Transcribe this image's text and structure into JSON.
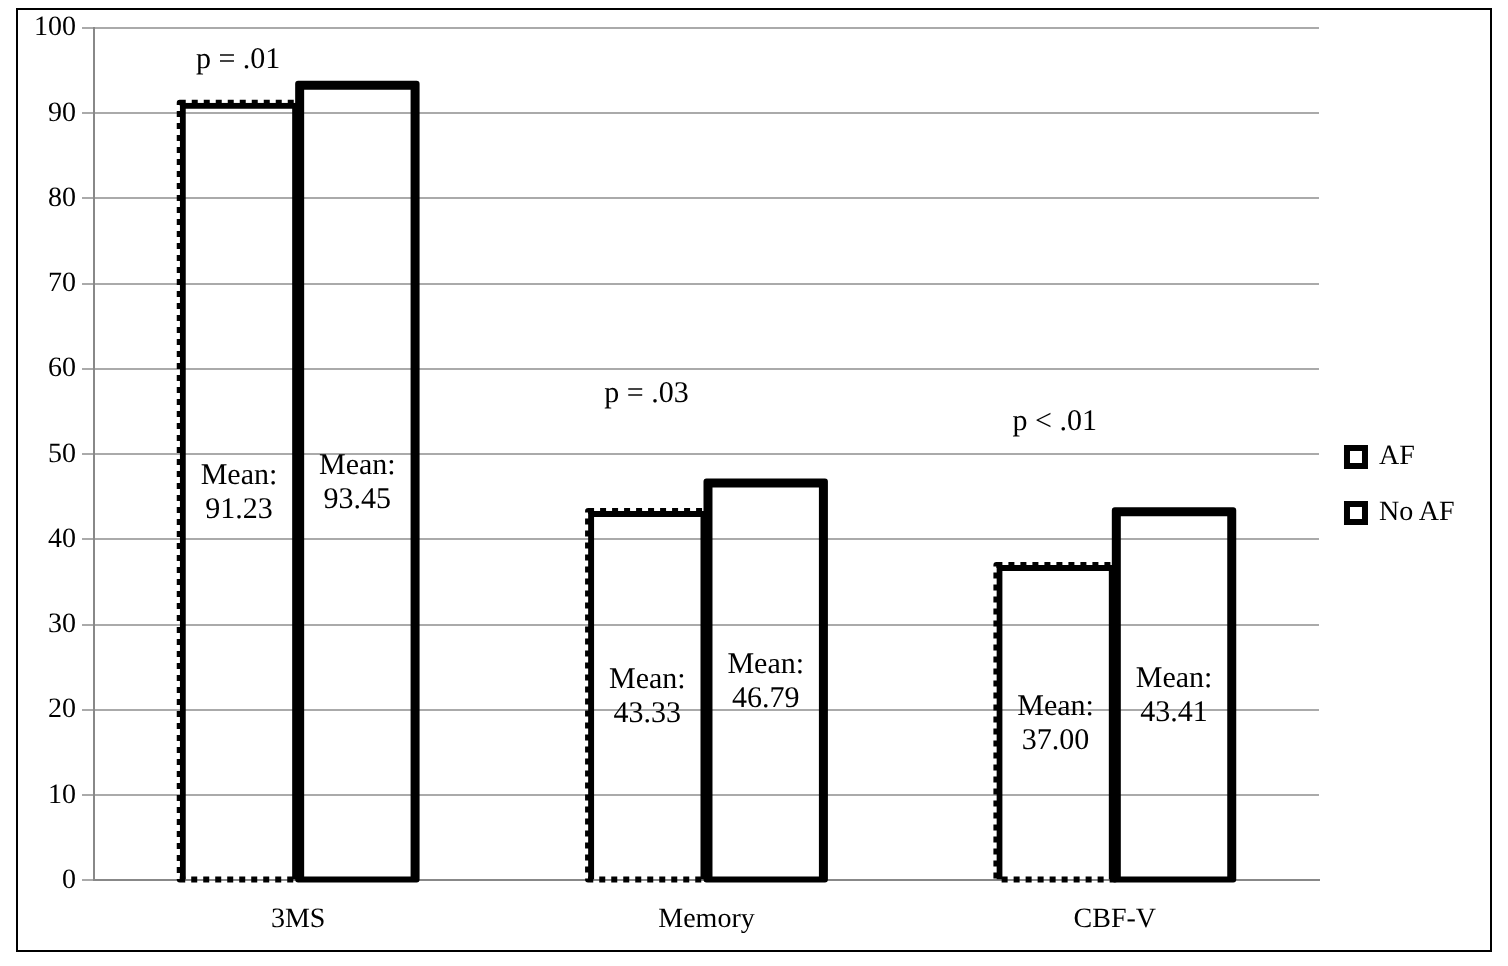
{
  "chart_data": {
    "type": "bar",
    "categories": [
      "3MS",
      "Memory",
      "CBF-V"
    ],
    "series": [
      {
        "name": "AF",
        "color": "#000000",
        "line_style": "dotted",
        "values": [
          91.23,
          43.33,
          37.0
        ],
        "value_labels": [
          "Mean: 91.23",
          "Mean: 43.33",
          "Mean: 37.00"
        ]
      },
      {
        "name": "No AF",
        "color": "#000000",
        "line_style": "solid",
        "values": [
          93.45,
          46.79,
          43.41
        ],
        "value_labels": [
          "Mean: 93.45",
          "Mean: 46.79",
          "Mean: 43.41"
        ]
      }
    ],
    "ylim": [
      0,
      100
    ],
    "yticks": [
      0,
      10,
      20,
      30,
      40,
      50,
      60,
      70,
      80,
      90,
      100
    ],
    "grid": "y",
    "legend": "right",
    "annotations": [
      "p = .01",
      "p = .03",
      "p < .01"
    ]
  }
}
